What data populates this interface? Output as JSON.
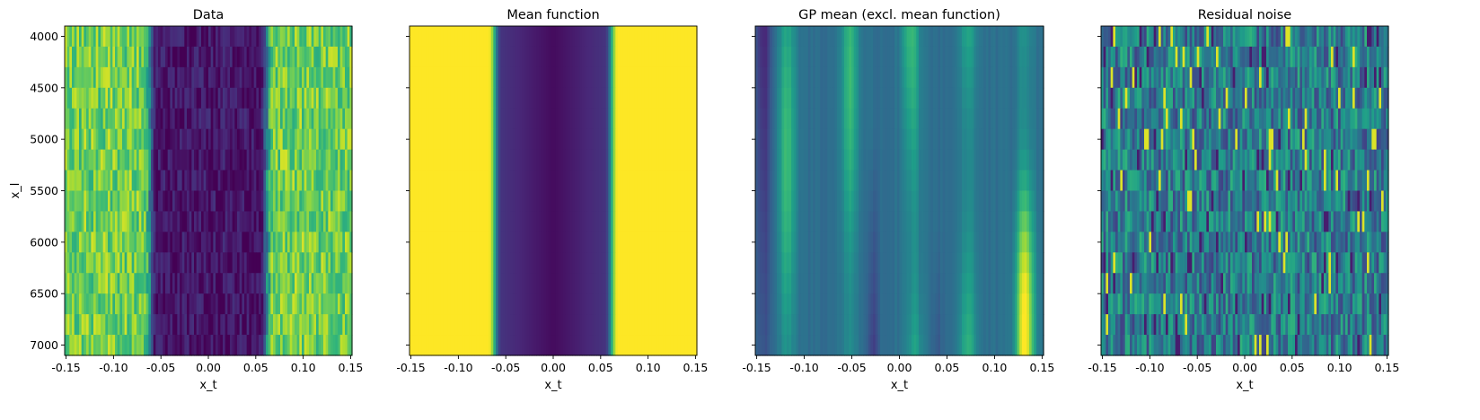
{
  "chart_data": [
    {
      "type": "heatmap",
      "title": "Data",
      "xlabel": "x_t",
      "ylabel": "x_l",
      "pattern": "data",
      "xlim": [
        -0.1515,
        0.1515
      ],
      "ylim": [
        7100,
        3900
      ],
      "xticks": [
        -0.15,
        -0.1,
        -0.05,
        0.0,
        0.05,
        0.1,
        0.15
      ],
      "xtick_labels": [
        "-0.15",
        "-0.10",
        "-0.05",
        "0.00",
        "0.05",
        "0.10",
        "0.15"
      ],
      "yticks": [
        4000,
        4500,
        5000,
        5500,
        6000,
        6500,
        7000
      ],
      "ytick_labels": [
        "4000",
        "4500",
        "5000",
        "5500",
        "6000",
        "6500",
        "7000"
      ],
      "colormap": "viridis"
    },
    {
      "type": "heatmap",
      "title": "Mean function",
      "xlabel": "x_t",
      "ylabel": "",
      "pattern": "mean",
      "xlim": [
        -0.1515,
        0.1515
      ],
      "ylim": [
        7100,
        3900
      ],
      "xticks": [
        -0.15,
        -0.1,
        -0.05,
        0.0,
        0.05,
        0.1,
        0.15
      ],
      "xtick_labels": [
        "-0.15",
        "-0.10",
        "-0.05",
        "0.00",
        "0.05",
        "0.10",
        "0.15"
      ],
      "yticks": [
        4000,
        4500,
        5000,
        5500,
        6000,
        6500,
        7000
      ],
      "ytick_labels": [],
      "colormap": "viridis"
    },
    {
      "type": "heatmap",
      "title": "GP mean (excl. mean function)",
      "xlabel": "x_t",
      "ylabel": "",
      "pattern": "gp",
      "xlim": [
        -0.1515,
        0.1515
      ],
      "ylim": [
        7100,
        3900
      ],
      "xticks": [
        -0.15,
        -0.1,
        -0.05,
        0.0,
        0.05,
        0.1,
        0.15
      ],
      "xtick_labels": [
        "-0.15",
        "-0.10",
        "-0.05",
        "0.00",
        "0.05",
        "0.10",
        "0.15"
      ],
      "yticks": [
        4000,
        4500,
        5000,
        5500,
        6000,
        6500,
        7000
      ],
      "ytick_labels": [],
      "colormap": "viridis"
    },
    {
      "type": "heatmap",
      "title": "Residual noise",
      "xlabel": "x_t",
      "ylabel": "",
      "pattern": "noise",
      "xlim": [
        -0.1515,
        0.1515
      ],
      "ylim": [
        7100,
        3900
      ],
      "xticks": [
        -0.15,
        -0.1,
        -0.05,
        0.0,
        0.05,
        0.1,
        0.15
      ],
      "xtick_labels": [
        "-0.15",
        "-0.10",
        "-0.05",
        "0.00",
        "0.05",
        "0.10",
        "0.15"
      ],
      "yticks": [
        4000,
        4500,
        5000,
        5500,
        6000,
        6500,
        7000
      ],
      "ytick_labels": [],
      "colormap": "viridis"
    }
  ]
}
